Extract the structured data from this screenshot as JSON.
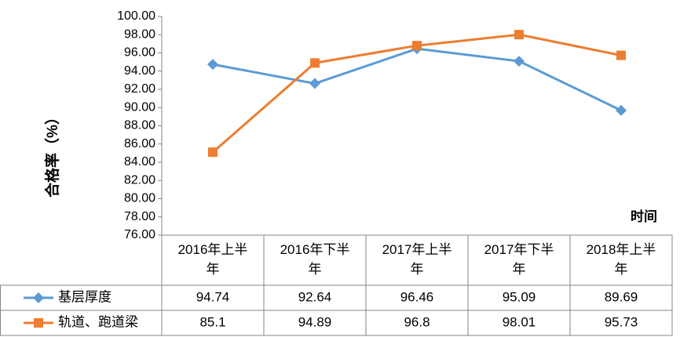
{
  "chart_data": {
    "type": "line",
    "ylabel": "合格率（%）",
    "xlabel": "时间",
    "ylim": [
      76,
      100
    ],
    "ytick_step": 2,
    "ytick_labels": [
      "76.00",
      "78.00",
      "80.00",
      "82.00",
      "84.00",
      "86.00",
      "88.00",
      "90.00",
      "92.00",
      "94.00",
      "96.00",
      "98.00",
      "100.00"
    ],
    "grid": false,
    "categories": [
      [
        "2016年上半",
        "年"
      ],
      [
        "2016年下半",
        "年"
      ],
      [
        "2017年上半",
        "年"
      ],
      [
        "2017年下半",
        "年"
      ],
      [
        "2018年上半",
        "年"
      ]
    ],
    "series": [
      {
        "name": "基层厚度",
        "color": "#5B9BD5",
        "marker": "diamond",
        "values": [
          94.74,
          92.64,
          96.46,
          95.09,
          89.69
        ],
        "labels": [
          "94.74",
          "92.64",
          "96.46",
          "95.09",
          "89.69"
        ]
      },
      {
        "name": "轨道、跑道梁",
        "color": "#ED7D31",
        "marker": "square",
        "values": [
          85.1,
          94.89,
          96.8,
          98.01,
          95.73
        ],
        "labels": [
          "85.1",
          "94.89",
          "96.8",
          "98.01",
          "95.73"
        ]
      }
    ]
  }
}
